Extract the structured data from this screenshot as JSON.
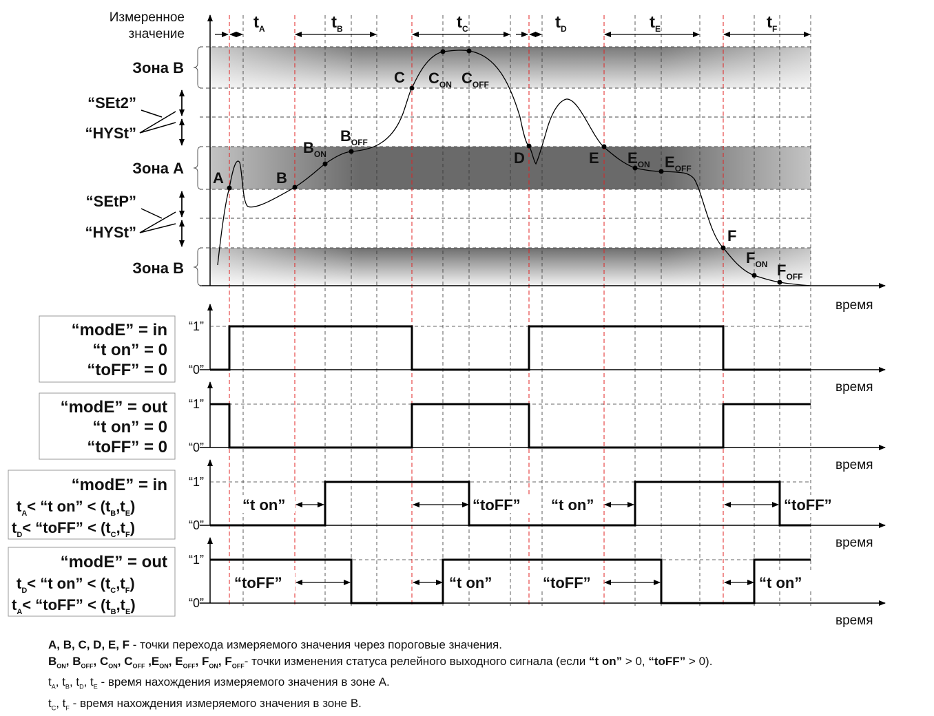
{
  "axis": {
    "y_label_line1": "Измеренное",
    "y_label_line2": "значение",
    "x_label": "время"
  },
  "intervals": [
    {
      "t": "t",
      "sub": "A"
    },
    {
      "t": "t",
      "sub": "B"
    },
    {
      "t": "t",
      "sub": "C"
    },
    {
      "t": "t",
      "sub": "D"
    },
    {
      "t": "t",
      "sub": "E"
    },
    {
      "t": "t",
      "sub": "F"
    }
  ],
  "zones": {
    "zone_b": "Зона B",
    "zone_a": "Зона A",
    "set2": "“SEt2”",
    "setp": "“SEtP”",
    "hyst": "“HYSt”"
  },
  "points": {
    "A": "A",
    "B": "B",
    "C": "C",
    "D": "D",
    "E": "E",
    "F": "F",
    "on": "ON",
    "off": "OFF"
  },
  "signal": {
    "one": "“1”",
    "zero": "“0”"
  },
  "panels": [
    {
      "lines": [
        "“modE” = in",
        "“t on” = 0",
        "“toFF” = 0"
      ]
    },
    {
      "lines": [
        "“modE” = out",
        "“t on” = 0",
        "“toFF” = 0"
      ]
    },
    {
      "lines": [
        "“modE” = in",
        "t",
        "< “t on” < (t",
        ",t",
        ")",
        "t",
        "< “toFF” < (t",
        ",t",
        ")"
      ]
    },
    {
      "lines": [
        "“modE” = out",
        "t",
        "< “t on” < (t",
        ",t",
        ")",
        "t",
        "< “toFF” < (t",
        ",t",
        ")"
      ]
    }
  ],
  "delay_labels": {
    "t_on": "“t on”",
    "t_off": "“toFF”"
  },
  "legend": {
    "line1_points": "A, B, C, D, E, F",
    "line1_text": " - точки перехода измеряемого значения через пороговые значения.",
    "line2_text": "- точки изменения статуса релейного выходного сигнала (если ",
    "line2_ton": "“t on”",
    "line2_mid": " > 0, ",
    "line2_toff": "“toFF”",
    "line2_end": " > 0).",
    "line3_text": " - время нахождения измеряемого значения в зоне A.",
    "line4_text": " - время нахождения измеряемого значения в зоне B."
  }
}
